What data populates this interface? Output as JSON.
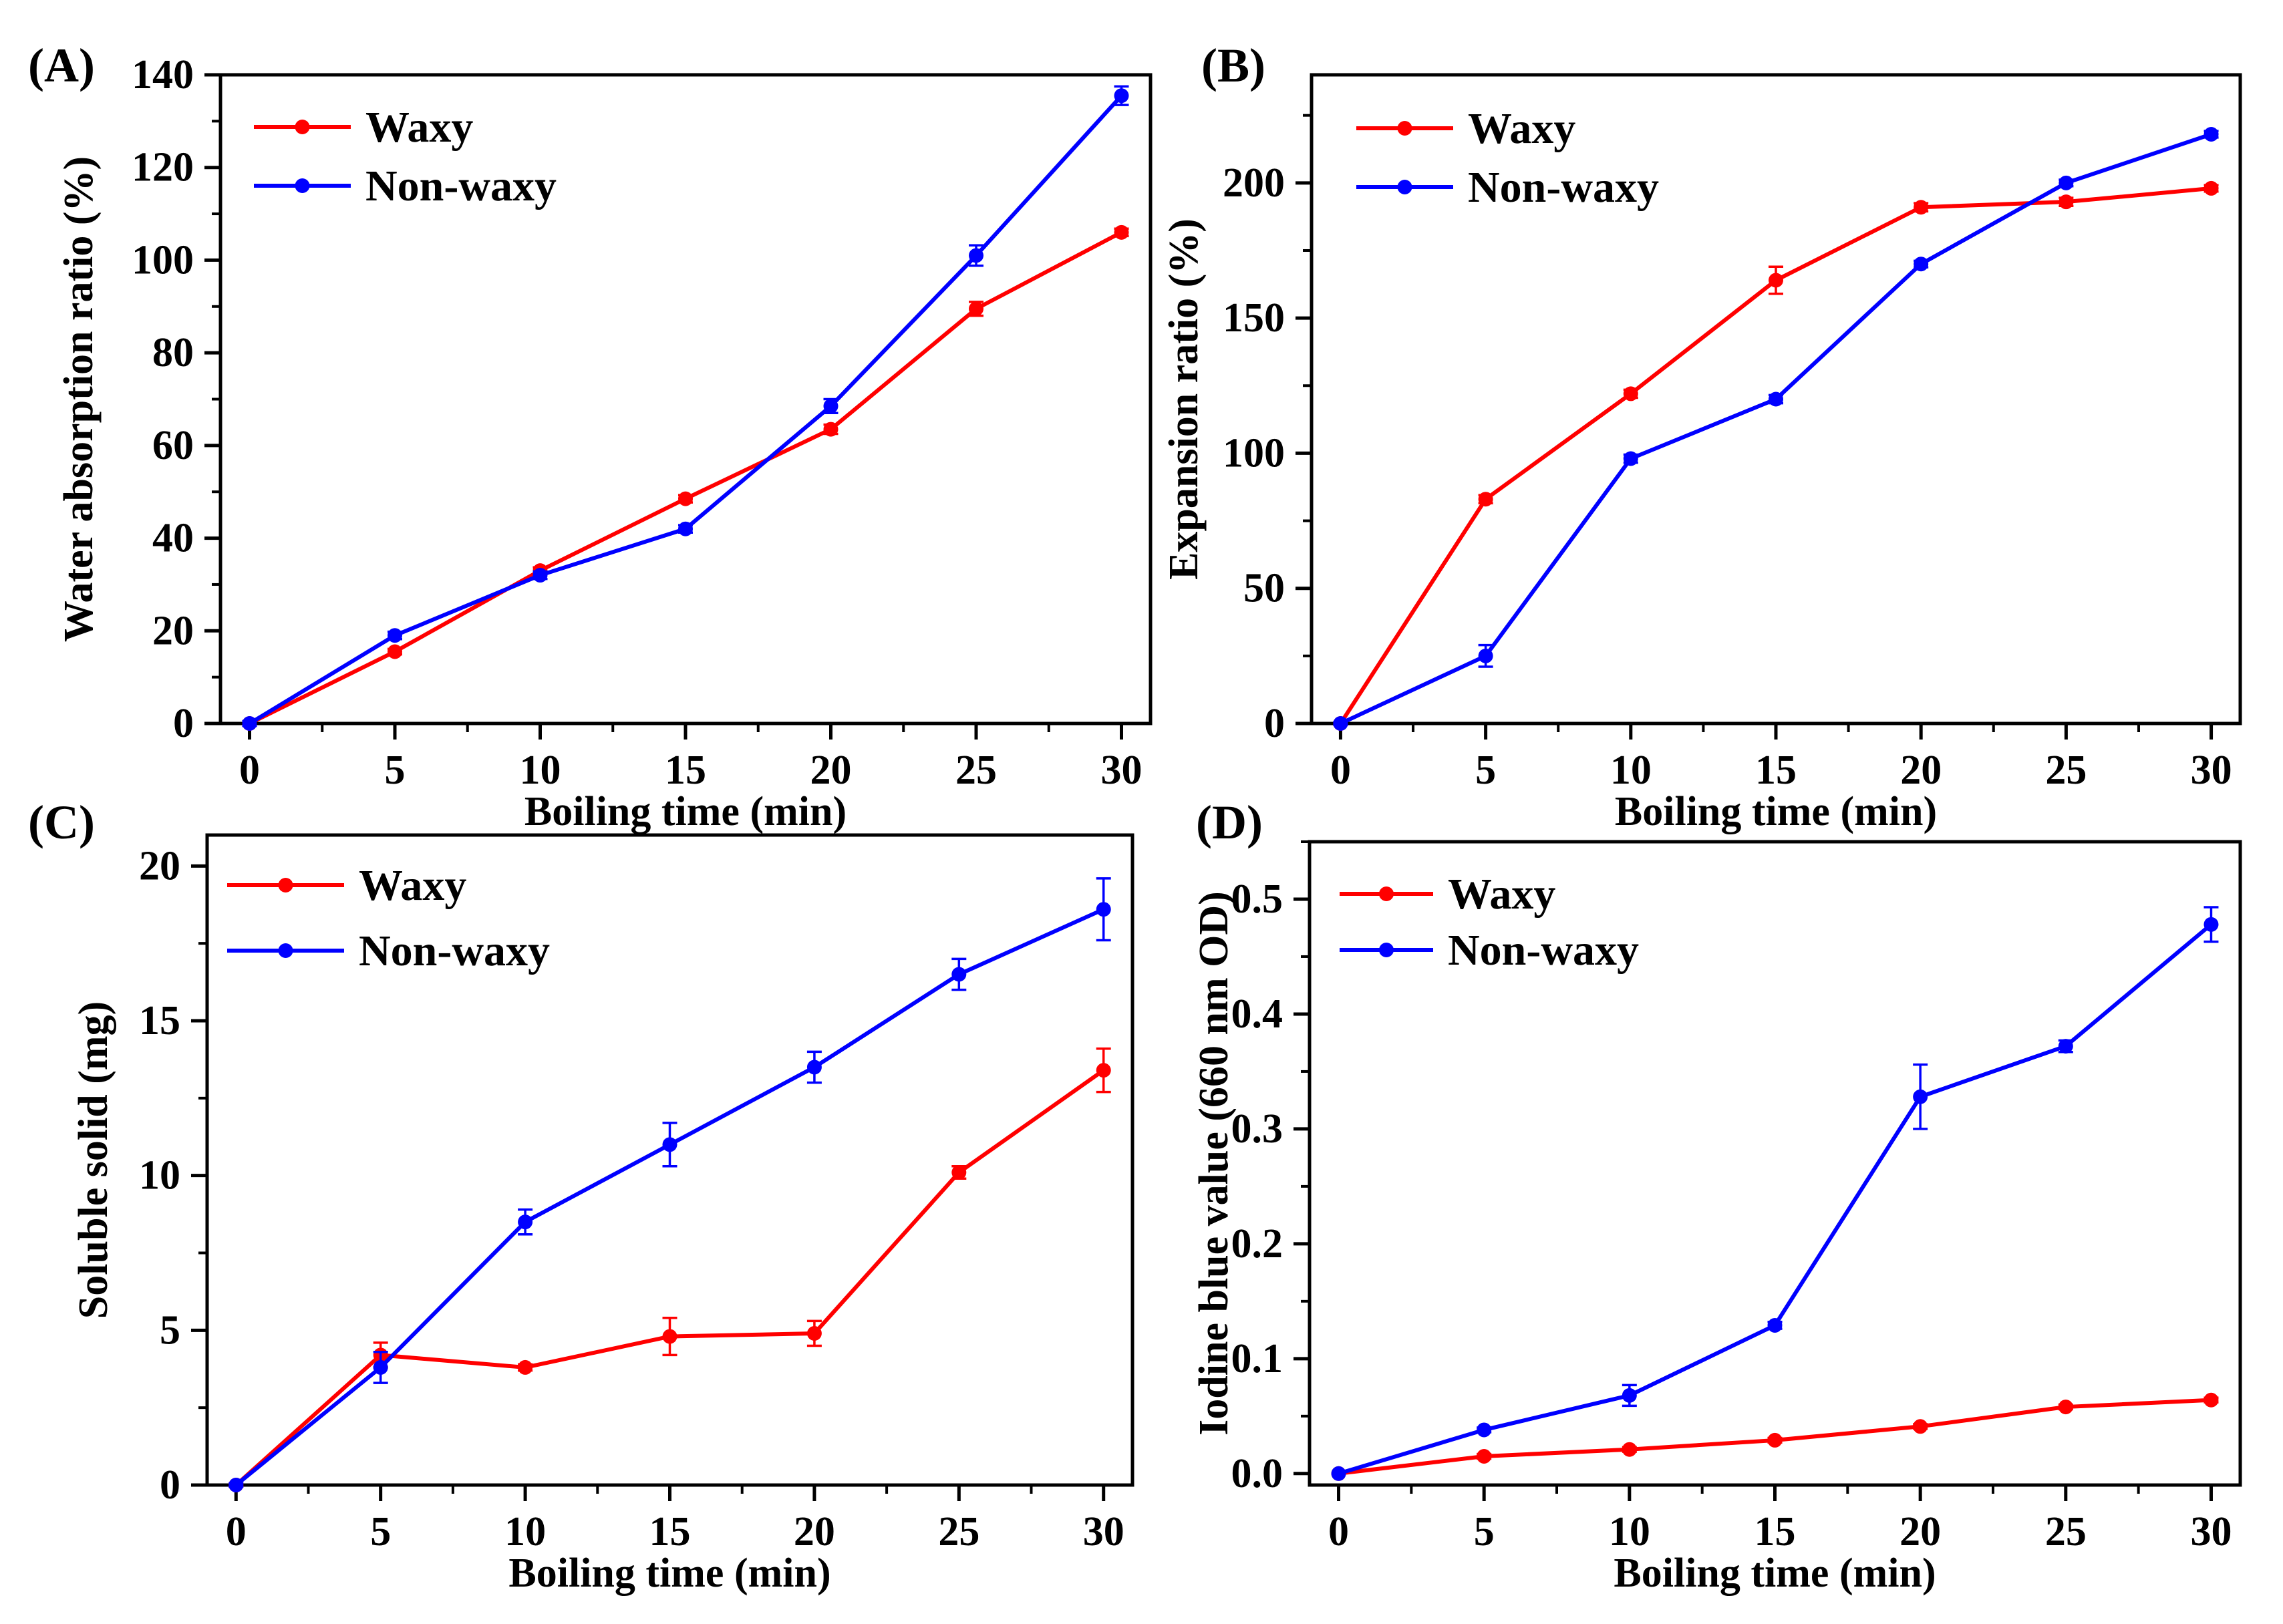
{
  "figure": {
    "colors": {
      "waxy": "#ff0000",
      "nonwaxy": "#0000ff",
      "axis": "#000000"
    }
  },
  "chart_data": [
    {
      "panel": "(A)",
      "type": "line",
      "xlabel": "Boiling time (min)",
      "ylabel": "Water absorption ratio (%)",
      "xlim": [
        -1,
        31
      ],
      "ylim": [
        0,
        140
      ],
      "xticks": [
        0,
        5,
        10,
        15,
        20,
        25,
        30
      ],
      "yticks": [
        0,
        20,
        40,
        60,
        80,
        100,
        120,
        140
      ],
      "ytick_labels": [
        "0",
        "20",
        "40",
        "60",
        "80",
        "100",
        "120",
        "140"
      ],
      "legend": "top-left",
      "x": [
        0,
        5,
        10,
        15,
        20,
        25,
        30
      ],
      "series": [
        {
          "name": "Waxy",
          "color": "#ff0000",
          "values": [
            0,
            15.5,
            33,
            48.5,
            63.5,
            89.5,
            106
          ],
          "errors": [
            0.5,
            0.6,
            0.7,
            0.8,
            1.0,
            1.5,
            0.8
          ]
        },
        {
          "name": "Non-waxy",
          "color": "#0000ff",
          "values": [
            0,
            19,
            32,
            42,
            68.5,
            101,
            135.5
          ],
          "errors": [
            0.5,
            0.8,
            0.8,
            0.8,
            1.5,
            2.2,
            2.0
          ]
        }
      ]
    },
    {
      "panel": "(B)",
      "type": "line",
      "xlabel": "Boiling time (min)",
      "ylabel": "Expansion ratio (%)",
      "xlim": [
        -1,
        31
      ],
      "ylim": [
        0,
        240
      ],
      "xticks": [
        0,
        5,
        10,
        15,
        20,
        25,
        30
      ],
      "yticks": [
        0,
        50,
        100,
        150,
        200
      ],
      "ytick_labels": [
        "0",
        "50",
        "100",
        "150",
        "200"
      ],
      "legend": "top-left",
      "x": [
        0,
        5,
        10,
        15,
        20,
        25,
        30
      ],
      "series": [
        {
          "name": "Waxy",
          "color": "#ff0000",
          "values": [
            0,
            83,
            122,
            164,
            191,
            193,
            198
          ],
          "errors": [
            0.5,
            1.5,
            1.5,
            5,
            1.5,
            1.5,
            1.2
          ]
        },
        {
          "name": "Non-waxy",
          "color": "#0000ff",
          "values": [
            0,
            25,
            98,
            120,
            170,
            200,
            218
          ],
          "errors": [
            0.5,
            4,
            1.5,
            1.5,
            1.2,
            1.2,
            1.2
          ]
        }
      ]
    },
    {
      "panel": "(C)",
      "type": "line",
      "xlabel": "Boiling time (min)",
      "ylabel": "Soluble solid (mg)",
      "xlim": [
        -1,
        31
      ],
      "ylim": [
        0,
        21
      ],
      "xticks": [
        0,
        5,
        10,
        15,
        20,
        25,
        30
      ],
      "yticks": [
        0,
        5,
        10,
        15,
        20
      ],
      "ytick_labels": [
        "0",
        "5",
        "10",
        "15",
        "20"
      ],
      "legend": "top-left",
      "x": [
        0,
        5,
        10,
        15,
        20,
        25,
        30
      ],
      "series": [
        {
          "name": "Waxy",
          "color": "#ff0000",
          "values": [
            0,
            4.2,
            3.8,
            4.8,
            4.9,
            10.1,
            13.4
          ],
          "errors": [
            0.05,
            0.4,
            0.1,
            0.6,
            0.4,
            0.2,
            0.7
          ]
        },
        {
          "name": "Non-waxy",
          "color": "#0000ff",
          "values": [
            0,
            3.8,
            8.5,
            11.0,
            13.5,
            16.5,
            18.6
          ],
          "errors": [
            0.05,
            0.5,
            0.4,
            0.7,
            0.5,
            0.5,
            1.0
          ]
        }
      ]
    },
    {
      "panel": "(D)",
      "type": "line",
      "xlabel": "Boiling time (min)",
      "ylabel": "Iodine blue value (660 nm OD)",
      "xlim": [
        -1,
        31
      ],
      "ylim": [
        -0.01,
        0.55
      ],
      "xticks": [
        0,
        5,
        10,
        15,
        20,
        25,
        30
      ],
      "yticks": [
        0,
        0.1,
        0.2,
        0.3,
        0.4,
        0.5
      ],
      "ytick_labels": [
        "0.0",
        "0.1",
        "0.2",
        "0.3",
        "0.4",
        "0.5"
      ],
      "legend": "top-left",
      "x": [
        0,
        5,
        10,
        15,
        20,
        25,
        30
      ],
      "series": [
        {
          "name": "Waxy",
          "color": "#ff0000",
          "values": [
            0,
            0.015,
            0.021,
            0.029,
            0.041,
            0.058,
            0.064
          ],
          "errors": [
            0.001,
            0.002,
            0.002,
            0.002,
            0.002,
            0.002,
            0.002
          ]
        },
        {
          "name": "Non-waxy",
          "color": "#0000ff",
          "values": [
            0,
            0.038,
            0.068,
            0.129,
            0.328,
            0.372,
            0.478
          ],
          "errors": [
            0.001,
            0.002,
            0.009,
            0.003,
            0.028,
            0.005,
            0.015
          ]
        }
      ]
    }
  ]
}
